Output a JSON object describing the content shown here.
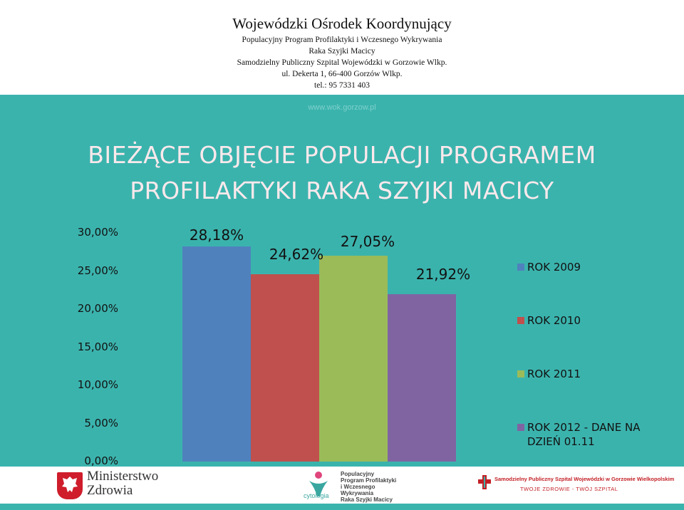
{
  "header": {
    "title": "Wojewódzki Ośrodek Koordynujący",
    "line1": "Populacyjny Program Profilaktyki i Wczesnego Wykrywania",
    "line2": "Raka Szyjki Macicy",
    "line3": "Samodzielny Publiczny Szpital Wojewódzki w Gorzowie Wlkp.",
    "line4": "ul. Dekerta 1, 66-400 Gorzów Wlkp.",
    "line5": "tel.: 95 7331 403"
  },
  "url": "www.wok.gorzow.pl",
  "slide_title_line1": "BIEŻĄCE OBJĘCIE POPULACJI PROGRAMEM",
  "slide_title_line2": "PROFILAKTYKI RAKA SZYJKI MACICY",
  "chart_data": {
    "type": "bar",
    "title": "",
    "xlabel": "",
    "ylabel": "",
    "ylim": [
      0,
      30
    ],
    "y_ticks": [
      "30,00%",
      "25,00%",
      "20,00%",
      "15,00%",
      "10,00%",
      "5,00%",
      "0,00%"
    ],
    "grid": false,
    "legend_position": "right",
    "series": [
      {
        "name": "ROK 2009",
        "value": 28.18,
        "label": "28,18%",
        "color": "#4f81bd"
      },
      {
        "name": "ROK 2010",
        "value": 24.62,
        "label": "24,62%",
        "color": "#c0504d"
      },
      {
        "name": "ROK 2011",
        "value": 27.05,
        "label": "27,05%",
        "color": "#9bbb59"
      },
      {
        "name": "ROK 2012 - DANE NA DZIEŃ 01.11",
        "value": 21.92,
        "label": "21,92%",
        "color": "#8064a2"
      }
    ]
  },
  "footer": {
    "ministry_line1": "Ministerstwo",
    "ministry_line2": "Zdrowia",
    "cyto_lines": [
      "Populacyjny",
      "Program Profilaktyki",
      "i Wczesnego",
      "Wykrywania",
      "Raka Szyjki Macicy"
    ],
    "cyto_word": "cytologia",
    "hospital_name": "Samodzielny Publiczny Szpital Wojewódzki w Gorzowie Wielkopolskim",
    "hospital_slogan": "TWOJE ZDROWIE - TWÓJ SZPITAL"
  }
}
